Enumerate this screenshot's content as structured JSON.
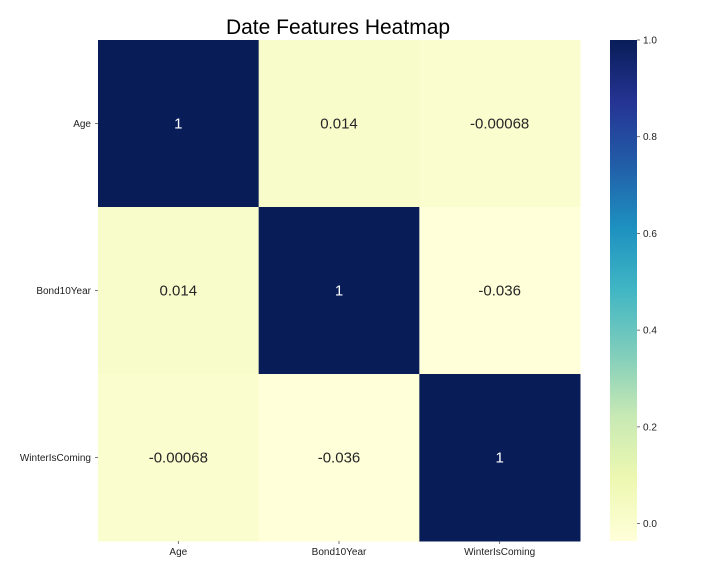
{
  "chart_data": {
    "type": "heatmap",
    "title": "Date Features Heatmap",
    "x_labels": [
      "Age",
      "Bond10Year",
      "WinterIsComing"
    ],
    "y_labels": [
      "Age",
      "Bond10Year",
      "WinterIsComing"
    ],
    "values": [
      [
        1,
        0.014,
        -0.00068
      ],
      [
        0.014,
        1,
        -0.036
      ],
      [
        -0.00068,
        -0.036,
        1
      ]
    ],
    "annotations": [
      [
        "1",
        "0.014",
        "-0.00068"
      ],
      [
        "0.014",
        "1",
        "-0.036"
      ],
      [
        "-0.00068",
        "-0.036",
        "1"
      ]
    ],
    "colormap": "YlGnBu",
    "colorbar": {
      "vmin": -0.036,
      "vmax": 1.0,
      "ticks": [
        0.0,
        0.2,
        0.4,
        0.6,
        0.8,
        1.0
      ],
      "tick_labels": [
        "0.0",
        "0.2",
        "0.4",
        "0.6",
        "0.8",
        "1.0"
      ]
    },
    "grid": false,
    "legend": "colorbar-right"
  }
}
